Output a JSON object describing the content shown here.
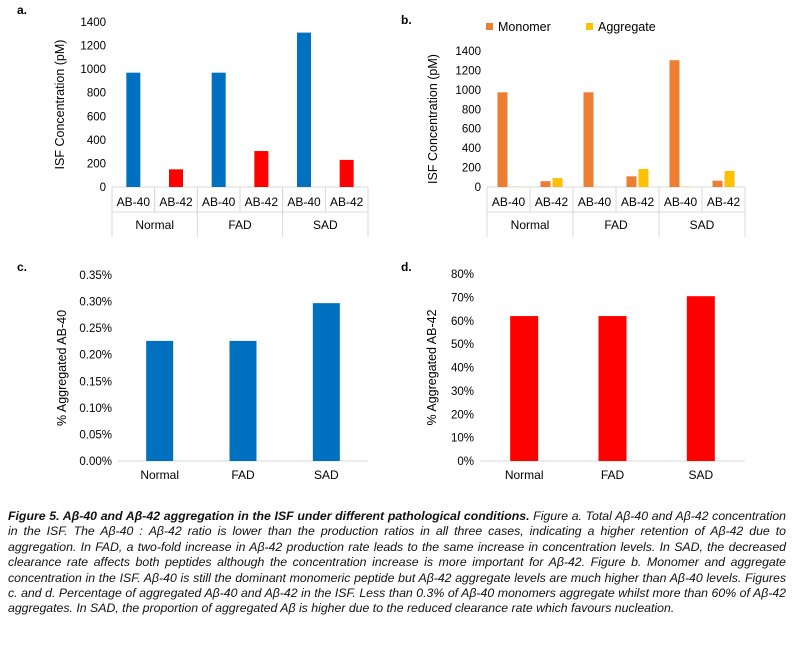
{
  "colors": {
    "blue": "#0070C0",
    "red": "#FF0000",
    "monomer": "#ED7D31",
    "aggregate": "#FFC000",
    "axis": "#D9D9D9",
    "text": "#404040"
  },
  "chart_data": [
    {
      "id": "a",
      "panel_label": "a.",
      "type": "bar",
      "ylabel": "ISF Concentration (pM)",
      "ylim": [
        0,
        1400
      ],
      "yticks": [
        "0",
        "200",
        "400",
        "600",
        "800",
        "1000",
        "1200",
        "1400"
      ],
      "groups": [
        "Normal",
        "FAD",
        "SAD"
      ],
      "categories": [
        "AB-40",
        "AB-42",
        "AB-40",
        "AB-42",
        "AB-40",
        "AB-42"
      ],
      "values": [
        970,
        150,
        970,
        305,
        1310,
        230
      ]
    },
    {
      "id": "b",
      "panel_label": "b.",
      "type": "bar",
      "ylabel": "ISF Concentration (pM)",
      "ylim": [
        0,
        1400
      ],
      "yticks": [
        "0",
        "200",
        "400",
        "600",
        "800",
        "1000",
        "1200",
        "1400"
      ],
      "legend_position": "top",
      "groups": [
        "Normal",
        "FAD",
        "SAD"
      ],
      "categories": [
        "AB-40",
        "AB-42",
        "AB-40",
        "AB-42",
        "AB-40",
        "AB-42"
      ],
      "series": [
        {
          "name": "Monomer",
          "values": [
            975,
            60,
            975,
            110,
            1305,
            65
          ]
        },
        {
          "name": "Aggregate",
          "values": [
            2,
            92,
            2,
            185,
            3,
            165
          ]
        }
      ]
    },
    {
      "id": "c",
      "panel_label": "c.",
      "type": "bar",
      "ylabel": "% Aggregated AB-40",
      "ylim": [
        0,
        0.35
      ],
      "yticks": [
        "0.00%",
        "0.05%",
        "0.10%",
        "0.15%",
        "0.20%",
        "0.25%",
        "0.30%",
        "0.35%"
      ],
      "categories": [
        "Normal",
        "FAD",
        "SAD"
      ],
      "values": [
        0.226,
        0.226,
        0.297
      ]
    },
    {
      "id": "d",
      "panel_label": "d.",
      "type": "bar",
      "ylabel": "% Aggregated AB-42",
      "ylim": [
        0,
        80
      ],
      "yticks": [
        "0%",
        "10%",
        "20%",
        "30%",
        "40%",
        "50%",
        "60%",
        "70%",
        "80%"
      ],
      "categories": [
        "Normal",
        "FAD",
        "SAD"
      ],
      "values": [
        62,
        62,
        70.5
      ]
    }
  ],
  "caption": {
    "title": "Figure 5. Aβ-40 and Aβ-42 aggregation in the ISF under different pathological conditions.",
    "body": " Figure a. Total Aβ-40 and Aβ-42 concentration in the ISF. The Aβ-40 : Aβ-42 ratio is lower than the production ratios in all three cases, indicating a higher retention of Aβ-42 due to aggregation. In FAD, a two-fold increase in Aβ-42 production rate leads to the same increase in concentration levels. In SAD, the decreased clearance rate affects both peptides although the concentration increase is more important for Aβ-42. Figure b. Monomer and aggregate concentration in the ISF. Aβ-40 is still the dominant monomeric peptide but Aβ-42 aggregate levels are much higher than Aβ-40 levels. Figures c. and d. Percentage of aggregated Aβ-40 and Aβ-42 in the ISF. Less than 0.3% of Aβ-40 monomers aggregate whilst more than 60% of Aβ-42 aggregates. In SAD, the proportion of aggregated Aβ is higher due to the reduced clearance rate which favours nucleation."
  }
}
